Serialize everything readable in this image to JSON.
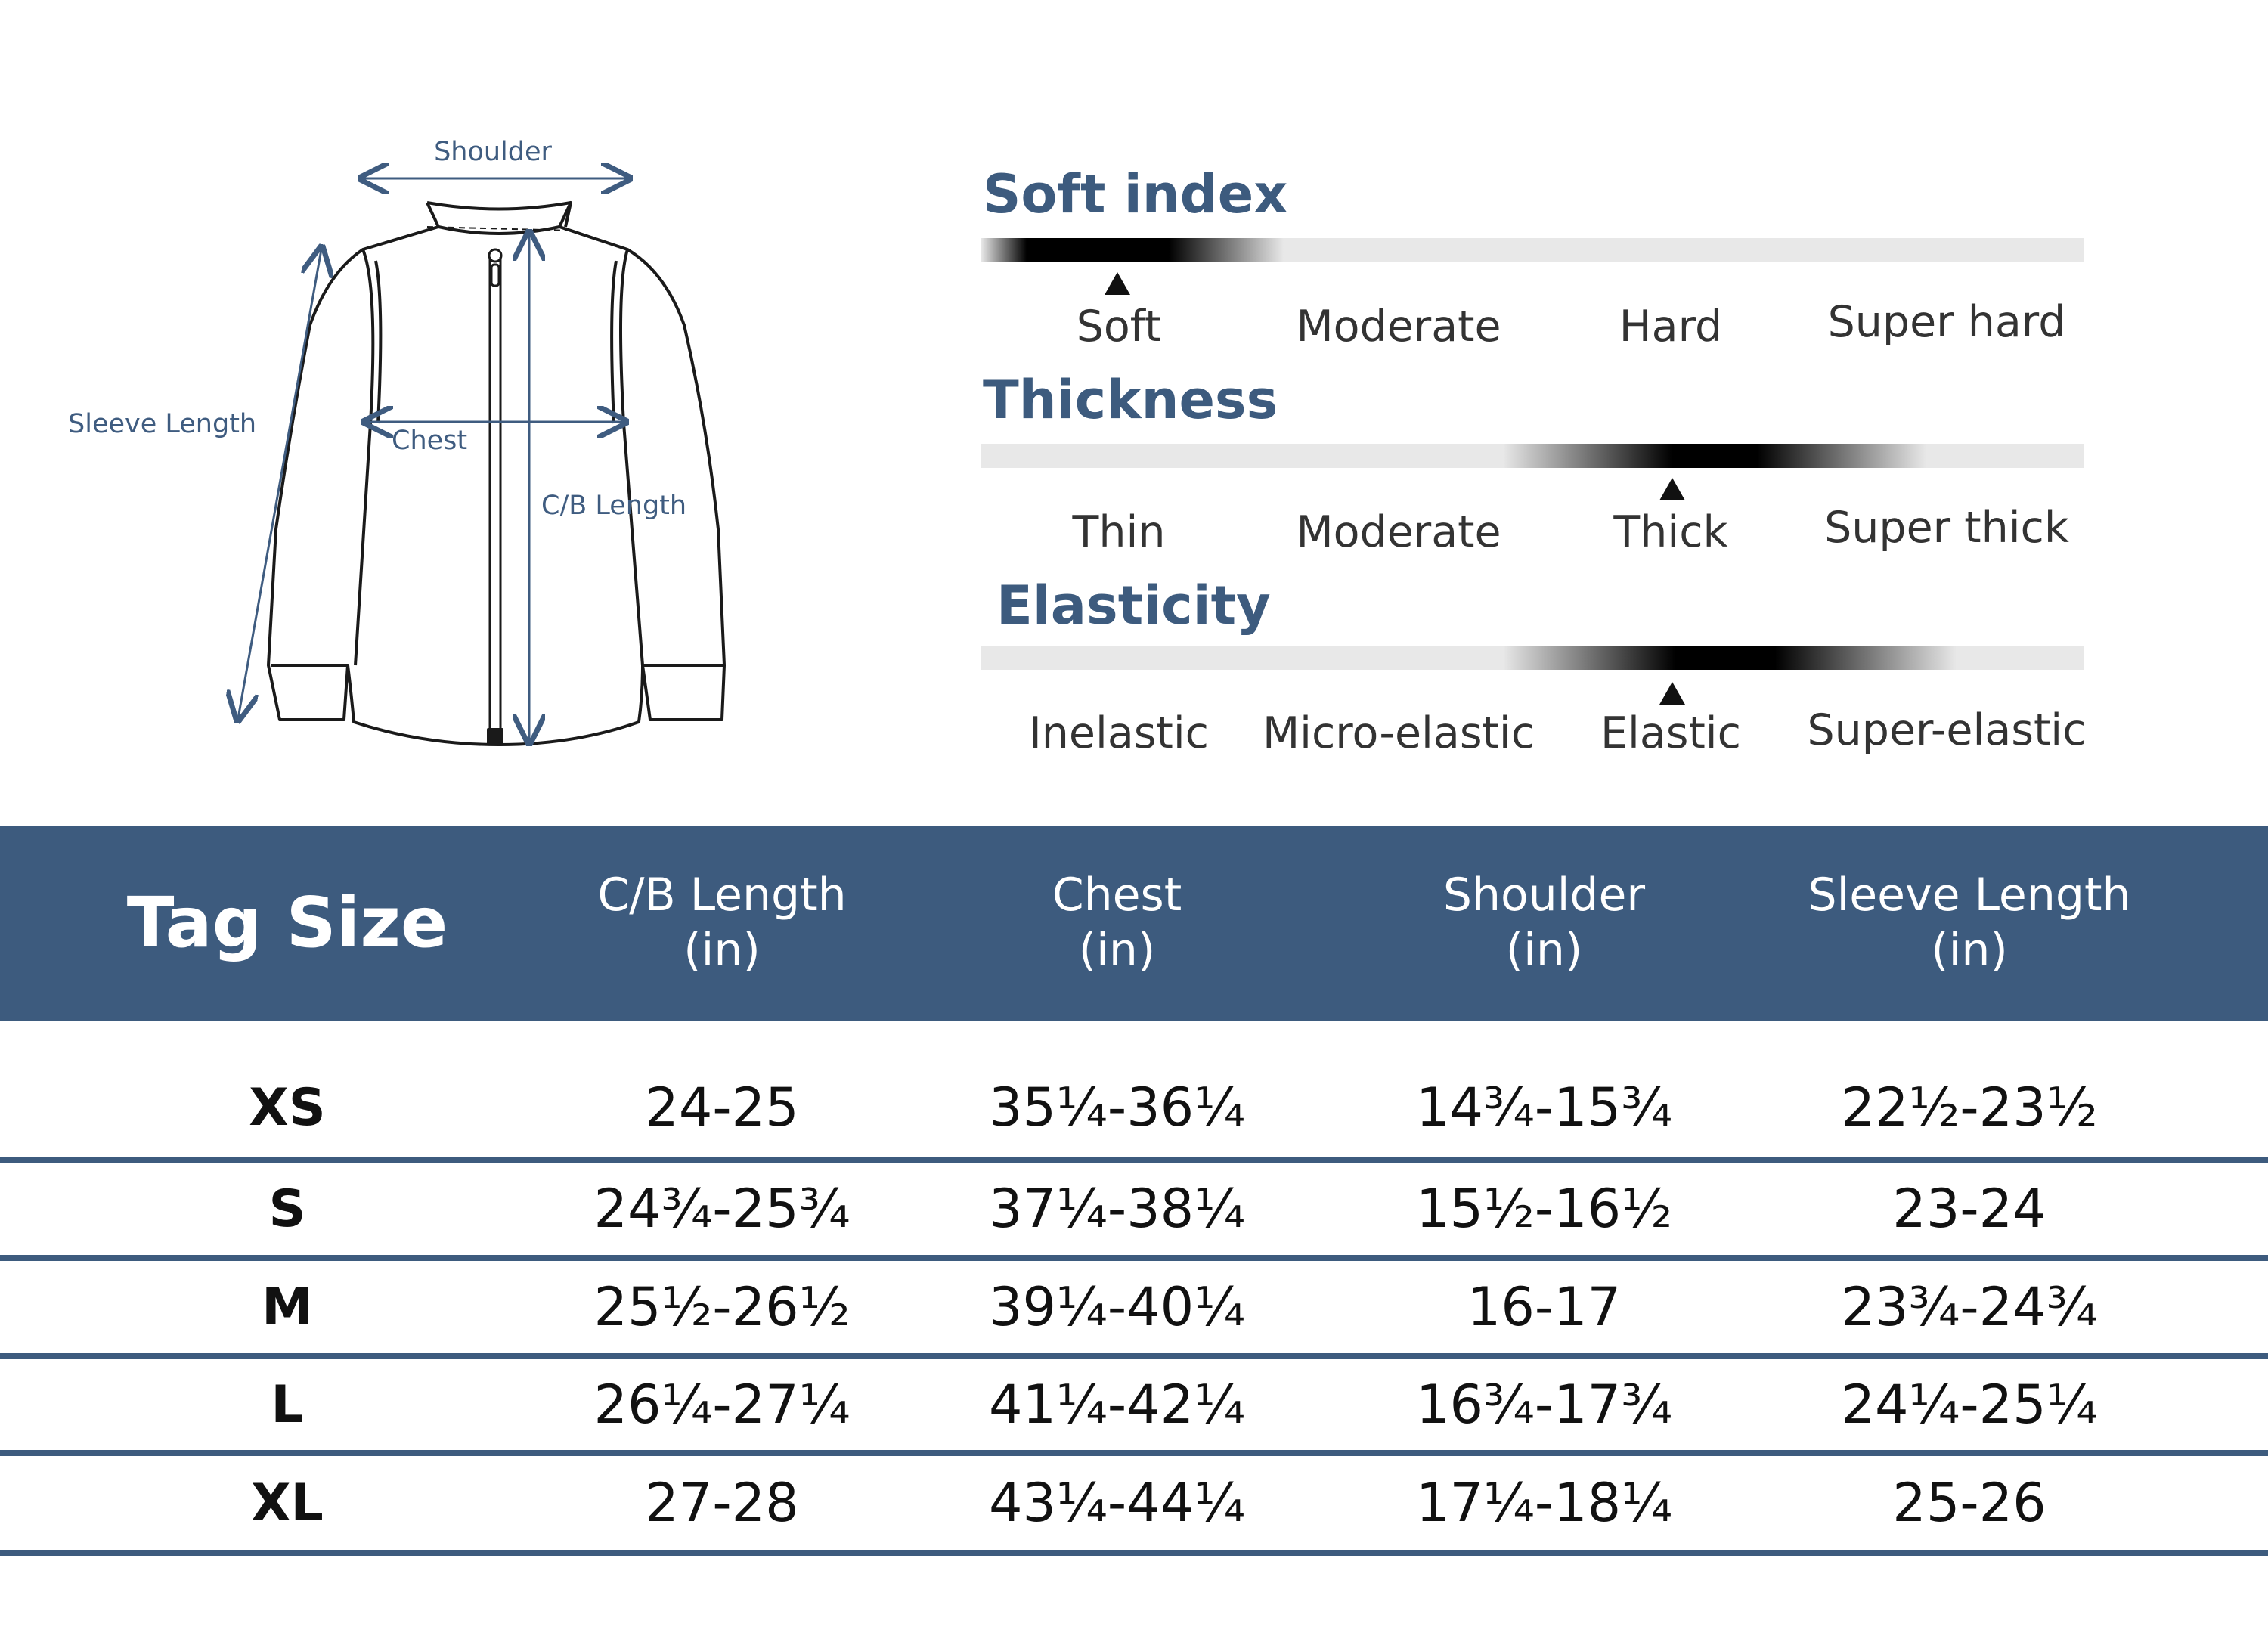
{
  "diagram": {
    "labels": {
      "shoulder": "Shoulder",
      "sleeve_length": "Sleeve Length",
      "chest": "Chest",
      "cb_length": "C/B Length"
    }
  },
  "indices": [
    {
      "title": "Soft index",
      "options": [
        "Soft",
        "Moderate",
        "Hard",
        "Super hard"
      ],
      "selected": 0
    },
    {
      "title": "Thickness",
      "options": [
        "Thin",
        "Moderate",
        "Thick",
        "Super thick"
      ],
      "selected": 2
    },
    {
      "title": "Elasticity",
      "options": [
        "Inelastic",
        "Micro-elastic",
        "Elastic",
        "Super-elastic"
      ],
      "selected": 2
    }
  ],
  "table": {
    "headers": [
      {
        "line1": "Tag Size",
        "line2": ""
      },
      {
        "line1": "C/B Length",
        "line2": "(in)"
      },
      {
        "line1": "Chest",
        "line2": "(in)"
      },
      {
        "line1": "Shoulder",
        "line2": "(in)"
      },
      {
        "line1": "Sleeve Length",
        "line2": "(in)"
      }
    ],
    "rows": [
      [
        "XS",
        "24-25",
        "35¼-36¼",
        "14¾-15¾",
        "22½-23½"
      ],
      [
        "S",
        "24¾-25¾",
        "37¼-38¼",
        "15½-16½",
        "23-24"
      ],
      [
        "M",
        "25½-26½",
        "39¼-40¼",
        "16-17",
        "23¾-24¾"
      ],
      [
        "L",
        "26¼-27¼",
        "41¼-42¼",
        "16¾-17¾",
        "24¼-25¼"
      ],
      [
        "XL",
        "27-28",
        "43¼-44¼",
        "17¼-18¼",
        "25-26"
      ]
    ]
  },
  "colors": {
    "accent": "#3d5b7e",
    "bar": "#e8e8e8",
    "text": "#111111"
  }
}
